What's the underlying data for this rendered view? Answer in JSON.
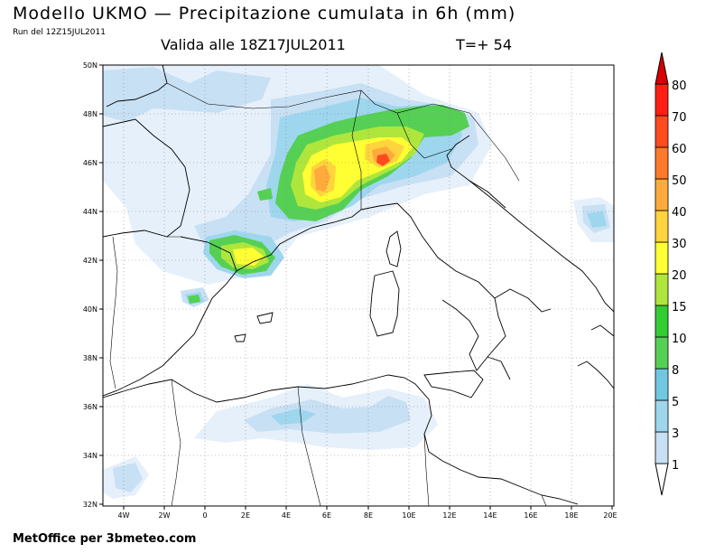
{
  "header": {
    "title": "Modello UKMO — Precipitazione cumulata in 6h (mm)",
    "run": "Run del 12Z15JUL2011",
    "valid": "Valida alle 18Z17JUL2011",
    "timestep": "T=+ 54"
  },
  "footer": {
    "credit": "MetOffice per 3bmeteo.com"
  },
  "axes": {
    "lon_labels": [
      "4W",
      "2W",
      "0",
      "2E",
      "4E",
      "6E",
      "8E",
      "10E",
      "12E",
      "14E",
      "16E",
      "18E",
      "20E"
    ],
    "lat_labels": [
      "32N",
      "34N",
      "36N",
      "38N",
      "40N",
      "42N",
      "44N",
      "46N",
      "48N",
      "50N"
    ]
  },
  "colorbar": {
    "levels": [
      "1",
      "3",
      "5",
      "8",
      "10",
      "15",
      "20",
      "30",
      "40",
      "50",
      "60",
      "70",
      "80"
    ],
    "colors": [
      "#e6f0fa",
      "#c8e0f4",
      "#9ed6ee",
      "#70c8e0",
      "#55d055",
      "#33cc33",
      "#aee63c",
      "#ffff33",
      "#ffd43c",
      "#ffaa3c",
      "#ff7a28",
      "#ff4a1e",
      "#ff1e14",
      "#d80000"
    ]
  },
  "icons": [
    "north-arrow-icon",
    "south-arrow-icon"
  ]
}
